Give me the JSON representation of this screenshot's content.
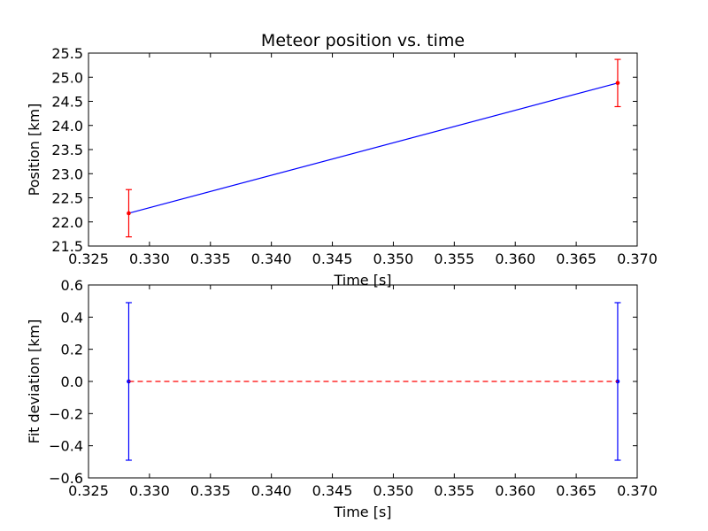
{
  "chart_data": [
    {
      "type": "line",
      "title": "Meteor position vs. time",
      "xlabel": "Time [s]",
      "ylabel": "Position [km]",
      "xlim": [
        0.325,
        0.37
      ],
      "ylim": [
        21.5,
        25.5
      ],
      "xticks": [
        "0.325",
        "0.330",
        "0.335",
        "0.340",
        "0.345",
        "0.350",
        "0.355",
        "0.360",
        "0.365",
        "0.370"
      ],
      "yticks": [
        "21.5",
        "22.0",
        "22.5",
        "23.0",
        "23.5",
        "24.0",
        "24.5",
        "25.0",
        "25.5"
      ],
      "series": [
        {
          "kind": "line",
          "color": "#0000ff",
          "x": [
            0.3283,
            0.3684
          ],
          "y": [
            22.18,
            24.88
          ]
        },
        {
          "kind": "errorbar",
          "color": "#ff0000",
          "x": [
            0.3283,
            0.3684
          ],
          "y": [
            22.18,
            24.88
          ],
          "yerr": [
            0.49,
            0.49
          ]
        }
      ],
      "grid": false
    },
    {
      "type": "line",
      "title": "",
      "xlabel": "Time [s]",
      "ylabel": "Fit deviation [km]",
      "xlim": [
        0.325,
        0.37
      ],
      "ylim": [
        -0.6,
        0.6
      ],
      "xticks": [
        "0.325",
        "0.330",
        "0.335",
        "0.340",
        "0.345",
        "0.350",
        "0.355",
        "0.360",
        "0.365",
        "0.370"
      ],
      "yticks": [
        "−0.6",
        "−0.4",
        "−0.2",
        "0.0",
        "0.2",
        "0.4",
        "0.6"
      ],
      "series": [
        {
          "kind": "errorbar",
          "color": "#0000ff",
          "x": [
            0.3283,
            0.3684
          ],
          "y": [
            0.0,
            0.0
          ],
          "yerr": [
            0.49,
            0.49
          ]
        },
        {
          "kind": "dashed-line",
          "color": "#ff0000",
          "x": [
            0.3283,
            0.3684
          ],
          "y": [
            0.0,
            0.0
          ]
        }
      ],
      "grid": false
    }
  ]
}
